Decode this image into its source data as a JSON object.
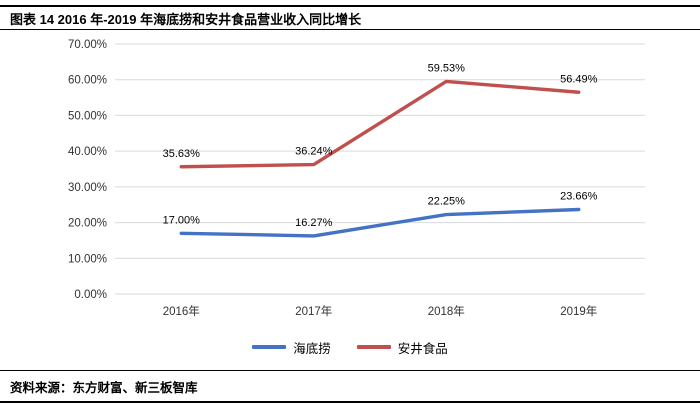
{
  "header": {
    "title": "图表 14 2016 年-2019 年海底捞和安井食品营业收入同比增长"
  },
  "footer": {
    "source": "资料来源：东方财富、新三板智库"
  },
  "chart_data": {
    "type": "line",
    "title": "2016年-2019年海底捞和安井食品营业收入同比增长",
    "categories": [
      "2016年",
      "2017年",
      "2018年",
      "2019年"
    ],
    "series": [
      {
        "name": "海底捞",
        "color": "#4472C4",
        "values": [
          17.0,
          16.27,
          22.25,
          23.66
        ],
        "data_labels": [
          "17.00%",
          "16.27%",
          "22.25%",
          "23.66%"
        ]
      },
      {
        "name": "安井食品",
        "color": "#C0504D",
        "values": [
          35.63,
          36.24,
          59.53,
          56.49
        ],
        "data_labels": [
          "35.63%",
          "36.24%",
          "59.53%",
          "56.49%"
        ]
      }
    ],
    "ylim": [
      0,
      70
    ],
    "ytick_step": 10,
    "yticks": [
      "0.00%",
      "10.00%",
      "20.00%",
      "30.00%",
      "40.00%",
      "50.00%",
      "60.00%",
      "70.00%"
    ],
    "grid": true,
    "grid_color": "#D9D9D9",
    "tick_label_color": "#333333",
    "data_label_color": "#000000",
    "legend_position": "bottom"
  }
}
